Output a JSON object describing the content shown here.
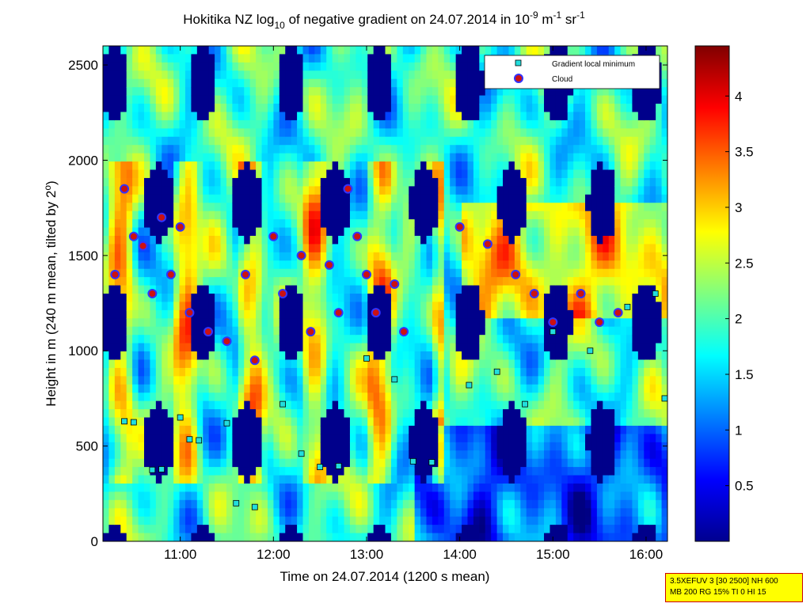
{
  "chart_data": {
    "type": "heatmap",
    "title": {
      "prefix": "Hokitika NZ log",
      "prefix_sub": "10",
      "middle": " of negative gradient on 24.07.2014 in 10",
      "exp1": "-9",
      "unit1": " m",
      "exp2": "-1",
      "unit2": " sr",
      "exp3": "-1"
    },
    "xlabel": "Time on 24.07.2014 (1200 s mean)",
    "ylabel_main": "Height in m (240 m mean, tilted by 2",
    "ylabel_deg": "o",
    "ylabel_end": ")",
    "x_ticks": [
      "11:00",
      "12:00",
      "13:00",
      "14:00",
      "15:00",
      "16:00"
    ],
    "x_tick_hours": [
      11,
      12,
      13,
      14,
      15,
      16
    ],
    "xlim_hours": [
      10.17,
      16.23
    ],
    "y_ticks": [
      0,
      500,
      1000,
      1500,
      2000,
      2500
    ],
    "ylim": [
      0,
      2600
    ],
    "colorbar": {
      "ticks": [
        "0.5",
        "1",
        "1.5",
        "2",
        "2.5",
        "3",
        "3.5",
        "4"
      ],
      "values": [
        0.5,
        1,
        1.5,
        2,
        2.5,
        3,
        3.5,
        4
      ],
      "range": [
        0,
        4.45
      ],
      "colormap": "jet"
    },
    "legend": {
      "position": "top-right",
      "entries": [
        "Gradient local minimum",
        "Cloud"
      ]
    },
    "series": [
      {
        "name": "Gradient local minimum",
        "marker": "square",
        "points": [
          [
            10.4,
            630
          ],
          [
            10.5,
            625
          ],
          [
            10.7,
            375
          ],
          [
            10.8,
            378
          ],
          [
            11.0,
            650
          ],
          [
            11.1,
            535
          ],
          [
            11.2,
            530
          ],
          [
            11.5,
            620
          ],
          [
            11.6,
            200
          ],
          [
            11.8,
            180
          ],
          [
            12.1,
            720
          ],
          [
            12.3,
            460
          ],
          [
            12.5,
            390
          ],
          [
            12.7,
            395
          ],
          [
            13.0,
            960
          ],
          [
            13.3,
            850
          ],
          [
            13.5,
            420
          ],
          [
            13.7,
            415
          ],
          [
            14.1,
            820
          ],
          [
            14.4,
            890
          ],
          [
            14.7,
            720
          ],
          [
            15.0,
            1100
          ],
          [
            15.4,
            1000
          ],
          [
            15.8,
            1230
          ],
          [
            16.1,
            1300
          ],
          [
            16.2,
            750
          ]
        ]
      },
      {
        "name": "Cloud",
        "marker": "circle",
        "points": [
          [
            10.3,
            1400
          ],
          [
            10.4,
            1850
          ],
          [
            10.5,
            1600
          ],
          [
            10.6,
            1550
          ],
          [
            10.7,
            1300
          ],
          [
            10.8,
            1700
          ],
          [
            10.9,
            1400
          ],
          [
            11.0,
            1650
          ],
          [
            11.1,
            1200
          ],
          [
            11.3,
            1100
          ],
          [
            11.5,
            1050
          ],
          [
            11.7,
            1400
          ],
          [
            11.8,
            950
          ],
          [
            12.0,
            1600
          ],
          [
            12.1,
            1300
          ],
          [
            12.3,
            1500
          ],
          [
            12.4,
            1100
          ],
          [
            12.6,
            1450
          ],
          [
            12.7,
            1200
          ],
          [
            12.8,
            1850
          ],
          [
            12.9,
            1600
          ],
          [
            13.0,
            1400
          ],
          [
            13.1,
            1200
          ],
          [
            13.3,
            1350
          ],
          [
            13.4,
            1100
          ],
          [
            14.0,
            1650
          ],
          [
            14.3,
            1560
          ],
          [
            14.6,
            1400
          ],
          [
            14.8,
            1300
          ],
          [
            15.0,
            1150
          ],
          [
            15.3,
            1300
          ],
          [
            15.5,
            1150
          ],
          [
            15.7,
            1200
          ]
        ]
      }
    ]
  },
  "info_box": {
    "line1": "3.5XEFUV 3 [30 2500] NH 600",
    "line2": "MB 200 RG 15% TI 0 HI 15"
  }
}
